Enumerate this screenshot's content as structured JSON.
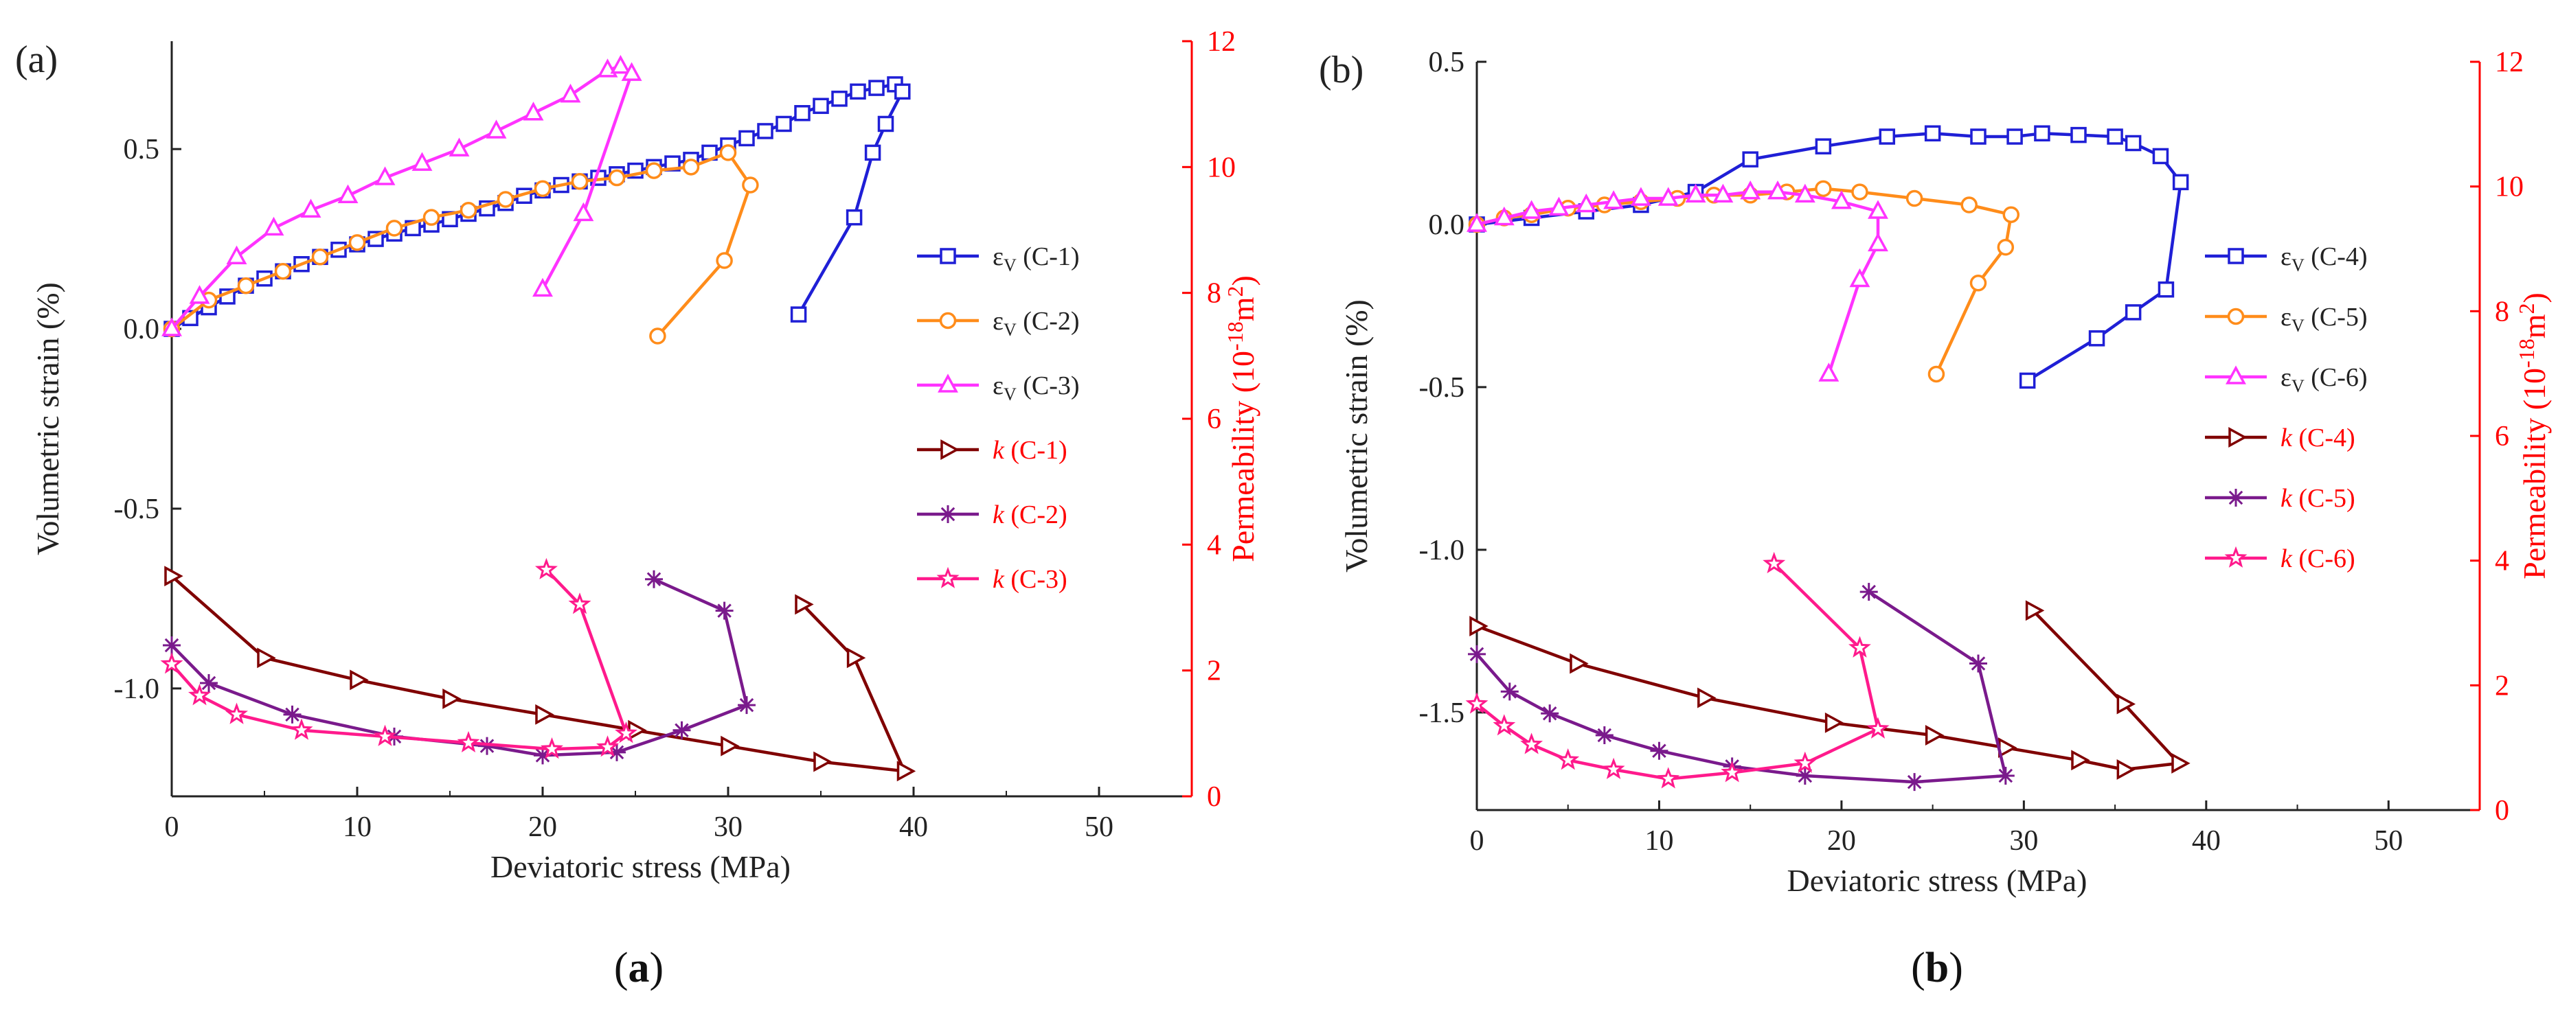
{
  "chart_data": [
    {
      "type": "line",
      "panel_label": "(a)",
      "caption_open": "(",
      "caption_letter": "a",
      "caption_close": ")",
      "xlabel": "Deviatoric stress (MPa)",
      "ylabel": "Volumetric strain (%)",
      "y2label": "Permeability (10",
      "y2label_exp": "-18",
      "y2label_unit": "m",
      "y2label_unit_exp": "2",
      "y2label_close": ")",
      "xlim": [
        0,
        55
      ],
      "ylim": [
        -1.3,
        0.8
      ],
      "y2lim": [
        0,
        12
      ],
      "xticks": [
        0,
        10,
        20,
        30,
        40,
        50
      ],
      "xtick_labels": [
        "0",
        "10",
        "20",
        "30",
        "40",
        "50"
      ],
      "yticks": [
        -1.0,
        -0.5,
        0.0,
        0.5
      ],
      "ytick_labels": [
        "-1.0",
        "-0.5",
        "0.0",
        "0.5"
      ],
      "y2ticks": [
        0,
        2,
        4,
        6,
        8,
        10,
        12
      ],
      "y2tick_labels": [
        "0",
        "2",
        "4",
        "6",
        "8",
        "10",
        "12"
      ],
      "series": [
        {
          "name": "εv (C-1)",
          "legend_symbol": "ε",
          "legend_sub": "V",
          "legend_suffix": " (C-1)",
          "axis": "left",
          "color": "#1f1fd6",
          "marker": "square",
          "x": [
            0,
            1,
            2,
            3,
            4,
            5,
            6,
            7,
            8,
            9,
            10,
            11,
            12,
            13,
            14,
            15,
            16,
            17,
            18,
            19,
            20,
            21,
            22,
            23,
            24,
            25,
            26,
            27,
            28,
            29,
            30,
            31,
            32,
            33,
            34,
            35,
            36,
            37,
            38,
            39,
            39.4,
            38.5,
            37.8,
            36.8,
            33.8
          ],
          "y": [
            0.0,
            0.03,
            0.06,
            0.09,
            0.12,
            0.14,
            0.16,
            0.18,
            0.2,
            0.22,
            0.235,
            0.25,
            0.265,
            0.28,
            0.29,
            0.305,
            0.32,
            0.335,
            0.35,
            0.37,
            0.385,
            0.4,
            0.41,
            0.42,
            0.43,
            0.44,
            0.45,
            0.46,
            0.47,
            0.49,
            0.51,
            0.53,
            0.55,
            0.57,
            0.6,
            0.62,
            0.64,
            0.66,
            0.67,
            0.68,
            0.66,
            0.57,
            0.49,
            0.31,
            0.04
          ]
        },
        {
          "name": "εv (C-2)",
          "legend_symbol": "ε",
          "legend_sub": "V",
          "legend_suffix": " (C-2)",
          "axis": "left",
          "color": "#ff8c1a",
          "marker": "circle",
          "x": [
            0,
            2,
            4,
            6,
            8,
            10,
            12,
            14,
            16,
            18,
            20,
            22,
            24,
            26,
            28,
            30,
            31.2,
            29.8,
            26.2
          ],
          "y": [
            0.0,
            0.08,
            0.12,
            0.16,
            0.2,
            0.24,
            0.28,
            0.31,
            0.33,
            0.36,
            0.39,
            0.41,
            0.42,
            0.44,
            0.45,
            0.49,
            0.4,
            0.19,
            -0.02
          ]
        },
        {
          "name": "εv (C-3)",
          "legend_symbol": "ε",
          "legend_sub": "V",
          "legend_suffix": " (C-3)",
          "axis": "left",
          "color": "#ff33ff",
          "marker": "triangle",
          "x": [
            0,
            1.5,
            3.5,
            5.5,
            7.5,
            9.5,
            11.5,
            13.5,
            15.5,
            17.5,
            19.5,
            21.5,
            23.5,
            24.2,
            24.8,
            22.2,
            20
          ],
          "y": [
            0.0,
            0.09,
            0.2,
            0.28,
            0.33,
            0.37,
            0.42,
            0.46,
            0.5,
            0.55,
            0.6,
            0.65,
            0.72,
            0.73,
            0.71,
            0.32,
            0.11
          ]
        },
        {
          "name": "k (C-1)",
          "legend_symbol": "k",
          "legend_suffix": " (C-1)",
          "axis": "right",
          "color": "#800000",
          "marker": "tri-right",
          "x": [
            0,
            5,
            10,
            15,
            20,
            25,
            30,
            35,
            39.5,
            36.8,
            34
          ],
          "y": [
            3.5,
            2.2,
            1.85,
            1.55,
            1.3,
            1.05,
            0.8,
            0.55,
            0.4,
            2.2,
            3.05
          ]
        },
        {
          "name": "k (C-2)",
          "legend_symbol": "k",
          "legend_suffix": " (C-2)",
          "axis": "right",
          "color": "#7a1a8c",
          "marker": "asterisk",
          "x": [
            0,
            2,
            6.5,
            12,
            17,
            20,
            24,
            27.5,
            31,
            29.8,
            26
          ],
          "y": [
            2.4,
            1.8,
            1.3,
            0.95,
            0.8,
            0.65,
            0.7,
            1.05,
            1.45,
            2.95,
            3.45
          ]
        },
        {
          "name": "k (C-3)",
          "legend_symbol": "k",
          "legend_suffix": " (C-3)",
          "axis": "right",
          "color": "#ff1a8c",
          "marker": "star",
          "x": [
            0,
            1.5,
            3.5,
            7,
            11.5,
            16,
            20.5,
            23.5,
            24.5,
            22,
            20.2
          ],
          "y": [
            2.1,
            1.6,
            1.3,
            1.05,
            0.95,
            0.85,
            0.75,
            0.78,
            1.0,
            3.05,
            3.6
          ]
        }
      ]
    },
    {
      "type": "line",
      "panel_label": "(b)",
      "caption_open": "(",
      "caption_letter": "b",
      "caption_close": ")",
      "xlabel": "Deviatoric stress (MPa)",
      "ylabel": "Volumetric strain (%)",
      "y2label": "Permeability (10",
      "y2label_exp": "-18",
      "y2label_unit": "m",
      "y2label_unit_exp": "2",
      "y2label_close": ")",
      "xlim": [
        0,
        55
      ],
      "ylim": [
        -1.8,
        0.5
      ],
      "y2lim": [
        0,
        12
      ],
      "xticks": [
        0,
        10,
        20,
        30,
        40,
        50
      ],
      "xtick_labels": [
        "0",
        "10",
        "20",
        "30",
        "40",
        "50"
      ],
      "yticks": [
        -1.5,
        -1.0,
        -0.5,
        0.0,
        0.5
      ],
      "ytick_labels": [
        "-1.5",
        "-1.0",
        "-0.5",
        "0.0",
        "0.5"
      ],
      "y2ticks": [
        0,
        2,
        4,
        6,
        8,
        10,
        12
      ],
      "y2tick_labels": [
        "0",
        "2",
        "4",
        "6",
        "8",
        "10",
        "12"
      ],
      "series": [
        {
          "name": "εv (C-4)",
          "legend_symbol": "ε",
          "legend_sub": "V",
          "legend_suffix": " (C-4)",
          "axis": "left",
          "color": "#1f1fd6",
          "marker": "square",
          "x": [
            0,
            3,
            6,
            9,
            12,
            15,
            19,
            22.5,
            25,
            27.5,
            29.5,
            31,
            33,
            35,
            36,
            37.5,
            38.6,
            37.8,
            36,
            34,
            30.2
          ],
          "y": [
            0.0,
            0.02,
            0.04,
            0.06,
            0.1,
            0.2,
            0.24,
            0.27,
            0.28,
            0.27,
            0.27,
            0.28,
            0.275,
            0.27,
            0.25,
            0.21,
            0.13,
            -0.2,
            -0.27,
            -0.35,
            -0.48
          ]
        },
        {
          "name": "εv (C-5)",
          "legend_symbol": "ε",
          "legend_sub": "V",
          "legend_suffix": " (C-5)",
          "axis": "left",
          "color": "#ff8c1a",
          "marker": "circle",
          "x": [
            0,
            1.5,
            3,
            5,
            7,
            9,
            11,
            13,
            15,
            17,
            19,
            21,
            24,
            27,
            29.3,
            29,
            27.5,
            25.2
          ],
          "y": [
            0.0,
            0.02,
            0.03,
            0.05,
            0.06,
            0.07,
            0.08,
            0.09,
            0.09,
            0.1,
            0.11,
            0.1,
            0.08,
            0.06,
            0.03,
            -0.07,
            -0.18,
            -0.46
          ]
        },
        {
          "name": "εv (C-6)",
          "legend_symbol": "ε",
          "legend_sub": "V",
          "legend_suffix": " (C-6)",
          "axis": "left",
          "color": "#ff33ff",
          "marker": "triangle",
          "x": [
            0,
            1.5,
            3,
            4.5,
            6,
            7.5,
            9,
            10.5,
            12,
            13.5,
            15,
            16.5,
            18,
            20,
            22,
            22,
            21,
            19.3
          ],
          "y": [
            0.0,
            0.02,
            0.04,
            0.05,
            0.06,
            0.07,
            0.08,
            0.08,
            0.09,
            0.09,
            0.1,
            0.1,
            0.09,
            0.07,
            0.04,
            -0.06,
            -0.17,
            -0.46
          ]
        },
        {
          "name": "k (C-4)",
          "legend_symbol": "k",
          "legend_suffix": " (C-4)",
          "axis": "right",
          "color": "#800000",
          "marker": "tri-right",
          "x": [
            0,
            5.5,
            12.5,
            19.5,
            25,
            29,
            33,
            35.5,
            38.5,
            35.5,
            30.5
          ],
          "y": [
            2.95,
            2.35,
            1.8,
            1.4,
            1.2,
            1.0,
            0.8,
            0.65,
            0.75,
            1.7,
            3.2
          ]
        },
        {
          "name": "k (C-5)",
          "legend_symbol": "k",
          "legend_suffix": " (C-5)",
          "axis": "right",
          "color": "#7a1a8c",
          "marker": "asterisk",
          "x": [
            0,
            1.8,
            4,
            7,
            10,
            14,
            18,
            24,
            29,
            27.5,
            21.5
          ],
          "y": [
            2.5,
            1.9,
            1.55,
            1.2,
            0.95,
            0.7,
            0.55,
            0.45,
            0.55,
            2.35,
            3.5
          ]
        },
        {
          "name": "k (C-6)",
          "legend_symbol": "k",
          "legend_suffix": " (C-6)",
          "axis": "right",
          "color": "#ff1a8c",
          "marker": "star",
          "x": [
            0,
            1.5,
            3,
            5,
            7.5,
            10.5,
            14,
            18,
            22,
            21,
            16.3
          ],
          "y": [
            1.7,
            1.35,
            1.05,
            0.8,
            0.65,
            0.5,
            0.6,
            0.75,
            1.3,
            2.6,
            3.95
          ]
        }
      ]
    }
  ]
}
